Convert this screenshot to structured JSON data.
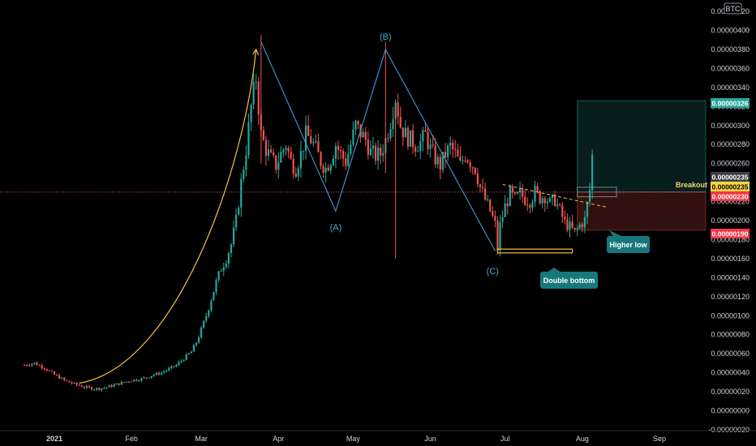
{
  "symbol": {
    "currency_badge": "BTC"
  },
  "colors": {
    "background": "#000000",
    "up": "#26a69a",
    "down": "#ef5350",
    "wave": "#3f9bd8",
    "curve": "#f5c242",
    "target": "#26a69a",
    "stop": "#ef5350",
    "callout": "#17787c"
  },
  "labels": {
    "wave_a": "(A)",
    "wave_b": "(B)",
    "wave_c": "(C)",
    "double_bottom": "Double bottom",
    "higher_low": "Higher low",
    "breakout": "Breakout"
  },
  "price_tags": {
    "target": "0.00000326",
    "last_gray": "0.00000235",
    "breakout_yellow": "0.00000235",
    "entry_red": "0.00000230",
    "stop_red": "0.00000190"
  },
  "chart_data": {
    "type": "candlestick",
    "y_axis": {
      "ticks": [
        "0.00000420",
        "0.00000400",
        "0.00000380",
        "0.00000360",
        "0.00000340",
        "0.00000320",
        "0.00000300",
        "0.00000280",
        "0.00000260",
        "0.00000240",
        "0.00000220",
        "0.00000200",
        "0.00000180",
        "0.00000160",
        "0.00000140",
        "0.00000120",
        "0.00000100",
        "0.00000080",
        "0.00000060",
        "0.00000040",
        "0.00000020",
        "0.00000000",
        "-0.00000020"
      ],
      "tick_values": [
        420,
        400,
        380,
        360,
        340,
        320,
        300,
        280,
        260,
        240,
        220,
        200,
        180,
        160,
        140,
        120,
        100,
        80,
        60,
        40,
        20,
        0,
        -20
      ],
      "range": [
        -26,
        438
      ],
      "unit_scale": "1e-8 BTC",
      "position": "right"
    },
    "x_axis": {
      "labels": [
        "2021",
        "Feb",
        "Mar",
        "Apr",
        "May",
        "Jun",
        "Jul",
        "Aug",
        "Sep"
      ],
      "label_days": [
        0,
        31,
        59,
        90,
        120,
        151,
        181,
        212,
        243
      ]
    },
    "price_line": 230,
    "grid": false,
    "candles_daily": [
      [
        -12,
        48
      ],
      [
        -8,
        50
      ],
      [
        -4,
        45
      ],
      [
        0,
        38
      ],
      [
        4,
        32
      ],
      [
        8,
        28
      ],
      [
        12,
        25
      ],
      [
        16,
        23
      ],
      [
        20,
        24
      ],
      [
        24,
        27
      ],
      [
        28,
        30
      ],
      [
        31,
        32
      ],
      [
        34,
        33
      ],
      [
        37,
        35
      ],
      [
        40,
        38
      ],
      [
        43,
        40
      ],
      [
        46,
        44
      ],
      [
        49,
        48
      ],
      [
        52,
        55
      ],
      [
        55,
        62
      ],
      [
        57,
        72
      ],
      [
        59,
        85
      ],
      [
        61,
        100
      ],
      [
        63,
        118
      ],
      [
        65,
        135
      ],
      [
        67,
        150
      ],
      [
        69,
        160
      ],
      [
        71,
        175
      ],
      [
        73,
        200
      ],
      [
        75,
        240
      ],
      [
        77,
        275
      ],
      [
        79,
        320
      ],
      [
        81,
        350
      ],
      [
        83,
        290
      ],
      [
        85,
        275
      ],
      [
        87,
        265
      ],
      [
        89,
        258
      ],
      [
        91,
        270
      ],
      [
        93,
        280
      ],
      [
        95,
        262
      ],
      [
        97,
        255
      ],
      [
        99,
        270
      ],
      [
        101,
        290
      ],
      [
        103,
        285
      ],
      [
        105,
        275
      ],
      [
        107,
        262
      ],
      [
        109,
        255
      ],
      [
        111,
        265
      ],
      [
        113,
        280
      ],
      [
        115,
        270
      ],
      [
        117,
        262
      ],
      [
        119,
        280
      ],
      [
        121,
        300
      ],
      [
        123,
        292
      ],
      [
        125,
        285
      ],
      [
        127,
        272
      ],
      [
        129,
        268
      ],
      [
        131,
        270
      ],
      [
        133,
        285
      ],
      [
        135,
        305
      ],
      [
        137,
        330
      ],
      [
        139,
        300
      ],
      [
        141,
        290
      ],
      [
        143,
        285
      ],
      [
        145,
        280
      ],
      [
        147,
        282
      ],
      [
        149,
        290
      ],
      [
        151,
        275
      ],
      [
        153,
        265
      ],
      [
        155,
        258
      ],
      [
        157,
        270
      ],
      [
        159,
        278
      ],
      [
        161,
        270
      ],
      [
        163,
        258
      ],
      [
        165,
        270
      ],
      [
        167,
        262
      ],
      [
        169,
        255
      ],
      [
        171,
        235
      ],
      [
        173,
        222
      ],
      [
        175,
        210
      ],
      [
        177,
        196
      ],
      [
        178,
        170
      ],
      [
        179,
        195
      ],
      [
        181,
        215
      ],
      [
        183,
        228
      ],
      [
        185,
        222
      ],
      [
        187,
        228
      ],
      [
        189,
        223
      ],
      [
        191,
        221
      ],
      [
        193,
        230
      ],
      [
        195,
        224
      ],
      [
        197,
        226
      ],
      [
        199,
        218
      ],
      [
        201,
        222
      ],
      [
        203,
        210
      ],
      [
        205,
        198
      ],
      [
        207,
        193
      ],
      [
        209,
        187
      ],
      [
        211,
        195
      ],
      [
        213,
        201
      ],
      [
        215,
        232
      ],
      [
        216,
        268
      ],
      [
        217,
        245
      ]
    ],
    "annotations": {
      "wave_points": [
        [
          83,
          388
        ],
        [
          113,
          210
        ],
        [
          133,
          380
        ],
        [
          177,
          168
        ]
      ],
      "parabola": {
        "start": [
          10,
          29
        ],
        "end": [
          81,
          380
        ]
      },
      "trendline": {
        "start": [
          180,
          238
        ],
        "end": [
          222,
          214
        ]
      },
      "double_bottom_box": {
        "x": [
          178,
          208
        ],
        "y": [
          166,
          170
        ]
      },
      "long_position": {
        "x": [
          210,
          238
        ],
        "entry": 230,
        "target": 326,
        "stop": 190
      }
    }
  }
}
